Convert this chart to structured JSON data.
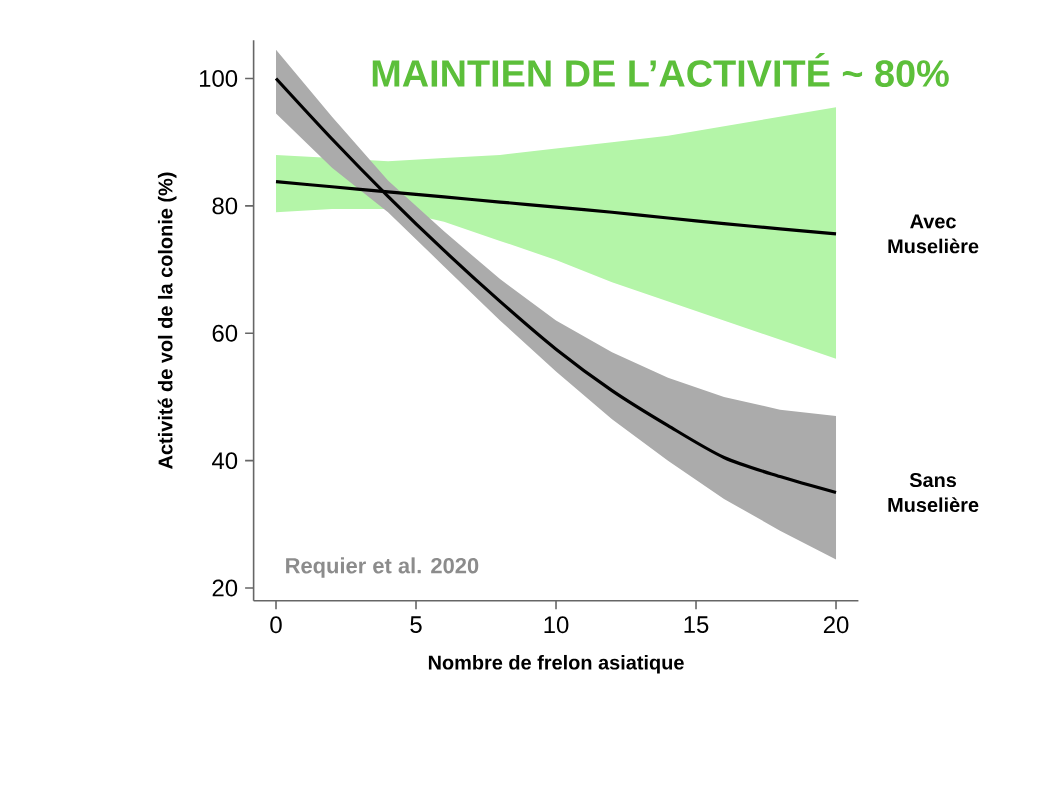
{
  "chart_data": {
    "type": "line",
    "title": "MAINTIEN DE L’ACTIVITÉ ~ 80%",
    "xlabel": "Nombre de frelon asiatique",
    "ylabel": "Activité de vol de la colonie (%)",
    "annotations": [
      "Requier et al. 2020"
    ],
    "x": [
      0,
      2,
      4,
      6,
      8,
      10,
      12,
      14,
      16,
      18,
      20
    ],
    "series": [
      {
        "name": "Avec Muselière",
        "color": "#000000",
        "values": [
          83.8,
          83,
          82.2,
          81.4,
          80.6,
          79.8,
          79,
          78.1,
          77.2,
          76.4,
          75.6
        ],
        "lower": [
          79,
          79.5,
          79.5,
          77.5,
          74.5,
          71.5,
          68,
          65,
          62,
          59,
          56
        ],
        "upper": [
          88,
          87.5,
          87,
          87.5,
          88,
          89,
          90,
          91,
          92.5,
          94,
          95.5
        ]
      },
      {
        "name": "Sans Muselière",
        "color": "#000000",
        "values": [
          100,
          90.5,
          81.5,
          73,
          65,
          57.5,
          51,
          45.5,
          40.5,
          37.5,
          35
        ],
        "lower": [
          94.5,
          86,
          79,
          70.5,
          62,
          54,
          46.5,
          40,
          34,
          29,
          24.5
        ],
        "upper": [
          104.5,
          94,
          84,
          76,
          68.5,
          62,
          57,
          53,
          50,
          48,
          47
        ]
      }
    ],
    "xlim": [
      -0.8,
      20.8
    ],
    "ylim": [
      18,
      106
    ],
    "xticks": [
      0,
      5,
      10,
      15,
      20
    ],
    "yticks": [
      20,
      40,
      60,
      80,
      100
    ]
  }
}
